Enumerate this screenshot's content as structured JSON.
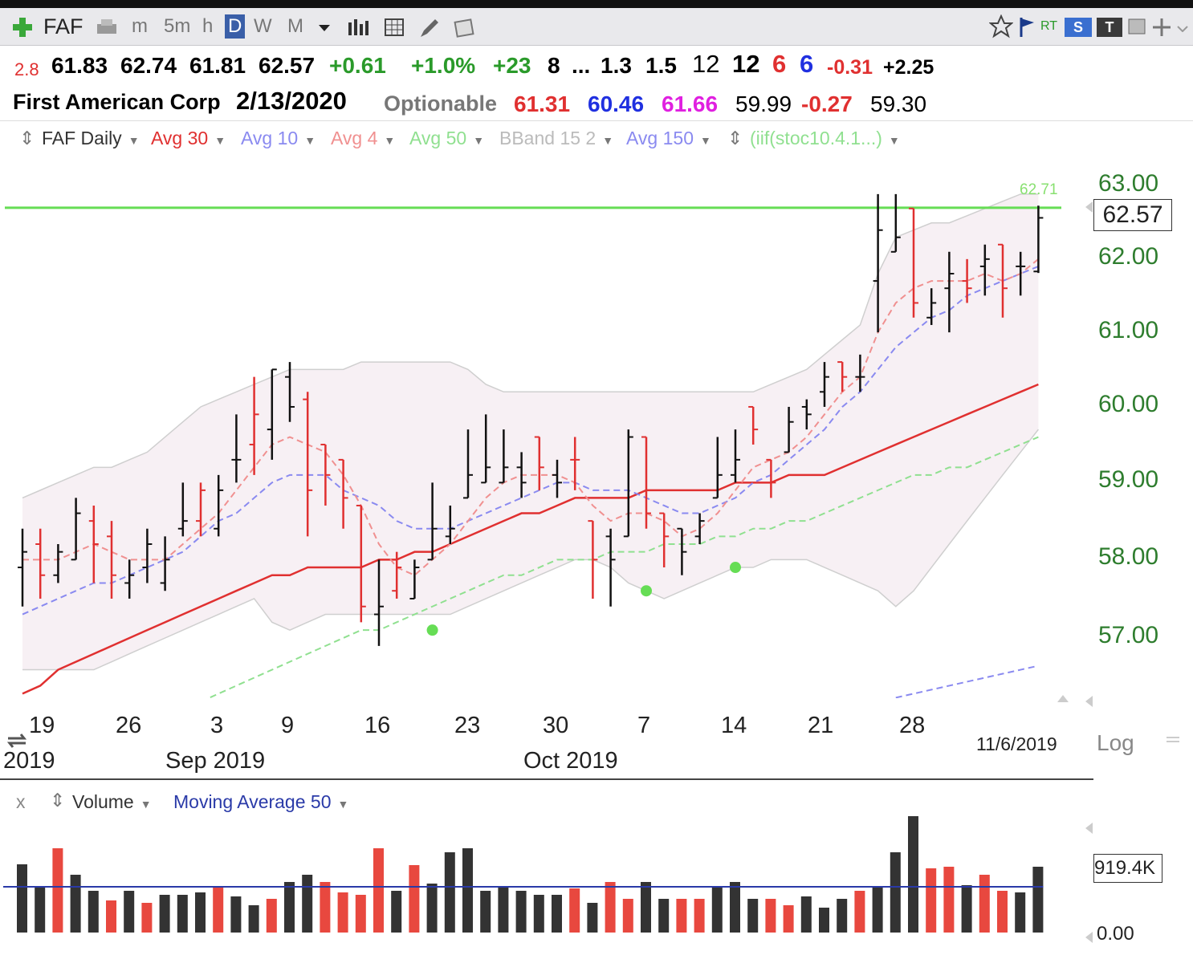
{
  "toolbar": {
    "symbol": "FAF",
    "intervals": [
      "m",
      "5m",
      "h",
      "D",
      "W",
      "M"
    ],
    "selected_interval": "D",
    "rt": "RT",
    "s_button": "S",
    "t_button": "T"
  },
  "quote_line1": {
    "v0": "2.8",
    "open": "61.83",
    "high": "62.74",
    "low": "61.81",
    "close": "62.57",
    "change": "+0.61",
    "pct": "+1.0%",
    "v1": "+23",
    "v2": "8",
    "v3": "...",
    "v4": "1.3",
    "v5": "1.5",
    "v6": "12",
    "v7": "12",
    "v8": "6",
    "v9": "6",
    "v10": "-0.31",
    "v11": "+2.25"
  },
  "quote_line2": {
    "name": "First American Corp",
    "date": "2/13/2020",
    "optionable": "Optionable",
    "v1": "61.31",
    "v2": "60.46",
    "v3": "61.66",
    "v4": "59.99",
    "v5": "-0.27",
    "v6": "59.30"
  },
  "legend": {
    "faf": "FAF Daily",
    "avg30": "Avg 30",
    "avg10": "Avg 10",
    "avg4": "Avg 4",
    "avg50": "Avg 50",
    "bband": "BBand 15 2",
    "avg150": "Avg 150",
    "stoc": "(iif(stoc10.4.1...)"
  },
  "colors": {
    "up": "#111111",
    "down": "#e03030",
    "avg30": "#e03030",
    "avg10": "#8a8af0",
    "avg4": "#f09090",
    "avg50": "#90e090",
    "bband_fill": "#f7f0f4",
    "bband_line": "#cfcfcf",
    "hline": "#66dd55",
    "price_axis": "#2e7d2e"
  },
  "price_axis": {
    "labels": [
      "63.00",
      "62.00",
      "61.00",
      "60.00",
      "59.00",
      "58.00",
      "57.00"
    ],
    "last_price": "62.57",
    "hline_value": "62.71",
    "scale": "Log"
  },
  "date_axis": {
    "days": [
      "19",
      "26",
      "3",
      "9",
      "16",
      "23",
      "30",
      "7",
      "14",
      "21",
      "28"
    ],
    "months": [
      "2019",
      "Sep 2019",
      "Oct 2019"
    ],
    "end_date": "11/6/2019"
  },
  "volume_panel": {
    "close_x": "x",
    "title": "Volume",
    "ma_label": "Moving Average 50",
    "last_value": "919.4K",
    "zero": "0.00"
  },
  "chart_data": {
    "type": "bar",
    "title": "FAF Daily",
    "scale": "log",
    "ylim": [
      56.3,
      63.4
    ],
    "hline": 62.71,
    "series": [
      {
        "name": "FAF Daily",
        "ohlc": [
          [
            57.9,
            58.4,
            57.4,
            58.1,
            "up"
          ],
          [
            58.2,
            58.4,
            57.5,
            57.8,
            "down"
          ],
          [
            57.8,
            58.2,
            57.7,
            58.1,
            "up"
          ],
          [
            58.0,
            58.8,
            58.0,
            58.6,
            "up"
          ],
          [
            58.5,
            58.7,
            57.7,
            58.2,
            "down"
          ],
          [
            58.3,
            58.5,
            57.5,
            57.8,
            "down"
          ],
          [
            57.7,
            58.0,
            57.5,
            57.8,
            "up"
          ],
          [
            57.9,
            58.4,
            57.7,
            58.2,
            "up"
          ],
          [
            57.7,
            58.3,
            57.6,
            58.0,
            "up"
          ],
          [
            58.4,
            59.0,
            58.3,
            58.5,
            "up"
          ],
          [
            58.5,
            59.0,
            58.3,
            58.9,
            "down"
          ],
          [
            58.4,
            59.1,
            58.3,
            58.9,
            "up"
          ],
          [
            59.3,
            59.9,
            59.0,
            59.3,
            "up"
          ],
          [
            59.5,
            60.4,
            59.1,
            59.9,
            "down"
          ],
          [
            59.7,
            60.5,
            59.3,
            60.5,
            "up"
          ],
          [
            60.4,
            60.6,
            59.8,
            60.0,
            "up"
          ],
          [
            60.1,
            60.2,
            58.3,
            58.9,
            "down"
          ],
          [
            59.5,
            59.5,
            58.7,
            59.1,
            "down"
          ],
          [
            59.3,
            59.3,
            58.4,
            58.8,
            "down"
          ],
          [
            58.7,
            58.7,
            57.2,
            57.4,
            "down"
          ],
          [
            57.3,
            58.0,
            56.9,
            57.4,
            "up"
          ],
          [
            57.6,
            58.1,
            57.5,
            57.9,
            "down"
          ],
          [
            57.5,
            58.0,
            57.5,
            57.9,
            "up"
          ],
          [
            58.0,
            59.0,
            58.0,
            58.4,
            "up"
          ],
          [
            58.3,
            58.7,
            58.2,
            58.4,
            "up"
          ],
          [
            58.8,
            59.7,
            58.8,
            59.1,
            "up"
          ],
          [
            59.0,
            59.9,
            59.0,
            59.2,
            "up"
          ],
          [
            59.0,
            59.7,
            59.0,
            59.2,
            "up"
          ],
          [
            59.2,
            59.4,
            58.8,
            59.0,
            "up"
          ],
          [
            59.6,
            59.6,
            58.9,
            59.2,
            "down"
          ],
          [
            59.1,
            59.3,
            58.8,
            59.0,
            "up"
          ],
          [
            59.3,
            59.6,
            58.9,
            59.3,
            "down"
          ],
          [
            58.5,
            58.5,
            57.5,
            58.0,
            "down"
          ],
          [
            58.3,
            58.4,
            57.4,
            58.0,
            "up"
          ],
          [
            58.3,
            59.7,
            58.3,
            59.6,
            "up"
          ],
          [
            59.6,
            59.6,
            58.4,
            58.6,
            "down"
          ],
          [
            58.6,
            58.6,
            57.9,
            58.3,
            "down"
          ],
          [
            58.4,
            58.4,
            57.8,
            58.1,
            "up"
          ],
          [
            58.3,
            58.6,
            58.2,
            58.5,
            "up"
          ],
          [
            58.8,
            59.6,
            58.8,
            59.1,
            "up"
          ],
          [
            59.1,
            59.7,
            59.0,
            59.3,
            "up"
          ],
          [
            60.0,
            60.0,
            59.5,
            59.7,
            "down"
          ],
          [
            59.3,
            59.3,
            58.8,
            59.0,
            "down"
          ],
          [
            59.4,
            60.0,
            59.4,
            59.8,
            "up"
          ],
          [
            60.0,
            60.1,
            59.7,
            59.9,
            "up"
          ],
          [
            60.2,
            60.6,
            60.0,
            60.4,
            "up"
          ],
          [
            60.6,
            60.6,
            60.2,
            60.4,
            "down"
          ],
          [
            60.4,
            60.7,
            60.2,
            60.4,
            "up"
          ],
          [
            61.7,
            62.9,
            61.0,
            62.4,
            "up"
          ],
          [
            62.1,
            62.9,
            62.1,
            62.3,
            "up"
          ],
          [
            62.7,
            62.7,
            61.2,
            61.4,
            "down"
          ],
          [
            61.2,
            61.6,
            61.1,
            61.4,
            "up"
          ],
          [
            61.6,
            62.1,
            61.0,
            61.8,
            "up"
          ],
          [
            61.7,
            62.0,
            61.4,
            61.6,
            "down"
          ],
          [
            61.9,
            62.2,
            61.5,
            62.0,
            "up"
          ],
          [
            62.2,
            62.2,
            61.2,
            61.6,
            "down"
          ],
          [
            61.9,
            62.1,
            61.5,
            61.9,
            "up"
          ],
          [
            61.83,
            62.74,
            61.81,
            62.57,
            "up"
          ]
        ]
      },
      {
        "name": "Avg 4",
        "values": [
          58.0,
          58.0,
          58.0,
          58.1,
          58.2,
          58.1,
          58.0,
          58.0,
          58.0,
          58.2,
          58.4,
          58.6,
          58.9,
          59.2,
          59.5,
          59.6,
          59.5,
          59.4,
          59.1,
          58.7,
          58.2,
          57.9,
          57.8,
          58.0,
          58.2,
          58.5,
          58.8,
          59.0,
          59.1,
          59.1,
          59.1,
          59.0,
          58.7,
          58.5,
          58.6,
          58.6,
          58.5,
          58.3,
          58.4,
          58.6,
          58.9,
          59.2,
          59.3,
          59.4,
          59.6,
          59.9,
          60.2,
          60.4,
          61.0,
          61.4,
          61.6,
          61.7,
          61.7,
          61.7,
          61.8,
          61.7,
          61.8,
          62.0
        ]
      },
      {
        "name": "Avg 10",
        "values": [
          57.3,
          57.4,
          57.5,
          57.6,
          57.7,
          57.7,
          57.8,
          57.9,
          58.0,
          58.1,
          58.3,
          58.5,
          58.6,
          58.8,
          59.0,
          59.1,
          59.1,
          59.1,
          58.9,
          58.8,
          58.7,
          58.5,
          58.4,
          58.4,
          58.4,
          58.5,
          58.6,
          58.7,
          58.8,
          58.9,
          59.0,
          59.0,
          58.9,
          58.9,
          58.9,
          58.8,
          58.7,
          58.6,
          58.6,
          58.7,
          58.8,
          59.0,
          59.1,
          59.3,
          59.5,
          59.7,
          60.0,
          60.2,
          60.5,
          60.8,
          61.0,
          61.2,
          61.3,
          61.5,
          61.6,
          61.7,
          61.8,
          61.9
        ]
      },
      {
        "name": "Avg 30",
        "values": [
          56.3,
          56.4,
          56.6,
          56.7,
          56.8,
          56.9,
          57.0,
          57.1,
          57.2,
          57.3,
          57.4,
          57.5,
          57.6,
          57.7,
          57.8,
          57.8,
          57.9,
          57.9,
          57.9,
          57.9,
          58.0,
          58.0,
          58.1,
          58.1,
          58.2,
          58.3,
          58.4,
          58.5,
          58.6,
          58.6,
          58.7,
          58.8,
          58.8,
          58.8,
          58.8,
          58.9,
          58.9,
          58.9,
          58.9,
          58.9,
          59.0,
          59.0,
          59.0,
          59.1,
          59.1,
          59.1,
          59.2,
          59.3,
          59.4,
          59.5,
          59.6,
          59.7,
          59.8,
          59.9,
          60.0,
          60.1,
          60.2,
          60.3
        ]
      },
      {
        "name": "Avg 50",
        "values": [
          null,
          null,
          null,
          null,
          null,
          null,
          null,
          null,
          null,
          null,
          56.2,
          56.3,
          56.4,
          56.5,
          56.6,
          56.7,
          56.8,
          56.9,
          57.0,
          57.1,
          57.1,
          57.2,
          57.3,
          57.4,
          57.5,
          57.6,
          57.7,
          57.8,
          57.8,
          57.9,
          58.0,
          58.0,
          58.0,
          58.1,
          58.1,
          58.1,
          58.2,
          58.2,
          58.2,
          58.3,
          58.3,
          58.4,
          58.4,
          58.5,
          58.5,
          58.6,
          58.7,
          58.8,
          58.9,
          59.0,
          59.1,
          59.1,
          59.2,
          59.2,
          59.3,
          59.4,
          59.5,
          59.6
        ]
      },
      {
        "name": "BBand 15 2 upper",
        "values": [
          58.8,
          58.9,
          59.0,
          59.1,
          59.2,
          59.2,
          59.3,
          59.4,
          59.6,
          59.8,
          60.0,
          60.1,
          60.2,
          60.3,
          60.4,
          60.5,
          60.5,
          60.5,
          60.5,
          60.6,
          60.6,
          60.6,
          60.6,
          60.6,
          60.6,
          60.5,
          60.3,
          60.2,
          60.2,
          60.2,
          60.2,
          60.2,
          60.2,
          60.2,
          60.2,
          60.2,
          60.2,
          60.2,
          60.2,
          60.2,
          60.2,
          60.2,
          60.3,
          60.4,
          60.5,
          60.7,
          60.9,
          61.1,
          61.8,
          62.3,
          62.4,
          62.5,
          62.5,
          62.6,
          62.7,
          62.8,
          62.9,
          62.9
        ]
      },
      {
        "name": "BBand 15 2 lower",
        "values": [
          56.6,
          56.6,
          56.6,
          56.6,
          56.6,
          56.7,
          56.8,
          56.9,
          57.0,
          57.1,
          57.2,
          57.3,
          57.4,
          57.5,
          57.2,
          57.1,
          57.2,
          57.3,
          57.3,
          57.3,
          57.3,
          57.3,
          57.3,
          57.3,
          57.3,
          57.4,
          57.5,
          57.6,
          57.7,
          57.8,
          57.9,
          58.0,
          58.0,
          57.9,
          57.7,
          57.6,
          57.5,
          57.6,
          57.7,
          57.8,
          57.9,
          57.9,
          58.0,
          58.0,
          58.0,
          57.9,
          57.8,
          57.7,
          57.6,
          57.4,
          57.6,
          57.9,
          58.2,
          58.5,
          58.8,
          59.1,
          59.4,
          59.7
        ]
      },
      {
        "name": "Avg 150",
        "values": [
          null,
          null,
          null,
          null,
          null,
          null,
          null,
          null,
          null,
          null,
          null,
          null,
          null,
          null,
          null,
          null,
          null,
          null,
          null,
          null,
          null,
          null,
          null,
          null,
          null,
          null,
          null,
          null,
          null,
          null,
          null,
          null,
          null,
          null,
          null,
          null,
          null,
          null,
          null,
          null,
          null,
          null,
          null,
          null,
          null,
          null,
          null,
          null,
          null,
          56.25,
          56.3,
          56.35,
          56.4,
          56.45,
          56.5,
          56.55,
          56.6,
          56.65
        ]
      }
    ],
    "signal_dots": [
      {
        "index": 23,
        "value": 57.1
      },
      {
        "index": 35,
        "value": 57.6
      },
      {
        "index": 40,
        "value": 57.9
      }
    ],
    "volume": [
      [
        0.85,
        "up"
      ],
      [
        0.58,
        "up"
      ],
      [
        1.05,
        "down"
      ],
      [
        0.72,
        "up"
      ],
      [
        0.52,
        "up"
      ],
      [
        0.4,
        "down"
      ],
      [
        0.52,
        "up"
      ],
      [
        0.37,
        "down"
      ],
      [
        0.47,
        "up"
      ],
      [
        0.47,
        "up"
      ],
      [
        0.5,
        "up"
      ],
      [
        0.58,
        "down"
      ],
      [
        0.45,
        "up"
      ],
      [
        0.34,
        "up"
      ],
      [
        0.42,
        "down"
      ],
      [
        0.63,
        "up"
      ],
      [
        0.72,
        "up"
      ],
      [
        0.63,
        "down"
      ],
      [
        0.5,
        "down"
      ],
      [
        0.47,
        "down"
      ],
      [
        1.05,
        "down"
      ],
      [
        0.52,
        "up"
      ],
      [
        0.84,
        "down"
      ],
      [
        0.61,
        "up"
      ],
      [
        1.0,
        "up"
      ],
      [
        1.05,
        "up"
      ],
      [
        0.52,
        "up"
      ],
      [
        0.57,
        "up"
      ],
      [
        0.52,
        "up"
      ],
      [
        0.47,
        "up"
      ],
      [
        0.47,
        "up"
      ],
      [
        0.55,
        "down"
      ],
      [
        0.37,
        "up"
      ],
      [
        0.63,
        "down"
      ],
      [
        0.42,
        "down"
      ],
      [
        0.63,
        "up"
      ],
      [
        0.42,
        "up"
      ],
      [
        0.42,
        "down"
      ],
      [
        0.42,
        "down"
      ],
      [
        0.58,
        "up"
      ],
      [
        0.63,
        "up"
      ],
      [
        0.42,
        "up"
      ],
      [
        0.42,
        "down"
      ],
      [
        0.34,
        "down"
      ],
      [
        0.45,
        "up"
      ],
      [
        0.31,
        "up"
      ],
      [
        0.42,
        "up"
      ],
      [
        0.52,
        "down"
      ],
      [
        0.58,
        "up"
      ],
      [
        1.0,
        "up"
      ],
      [
        1.45,
        "up"
      ],
      [
        0.8,
        "down"
      ],
      [
        0.82,
        "down"
      ],
      [
        0.59,
        "up"
      ],
      [
        0.72,
        "down"
      ],
      [
        0.52,
        "down"
      ],
      [
        0.5,
        "up"
      ],
      [
        0.82,
        "up"
      ]
    ],
    "volume_ma": 0.57
  }
}
